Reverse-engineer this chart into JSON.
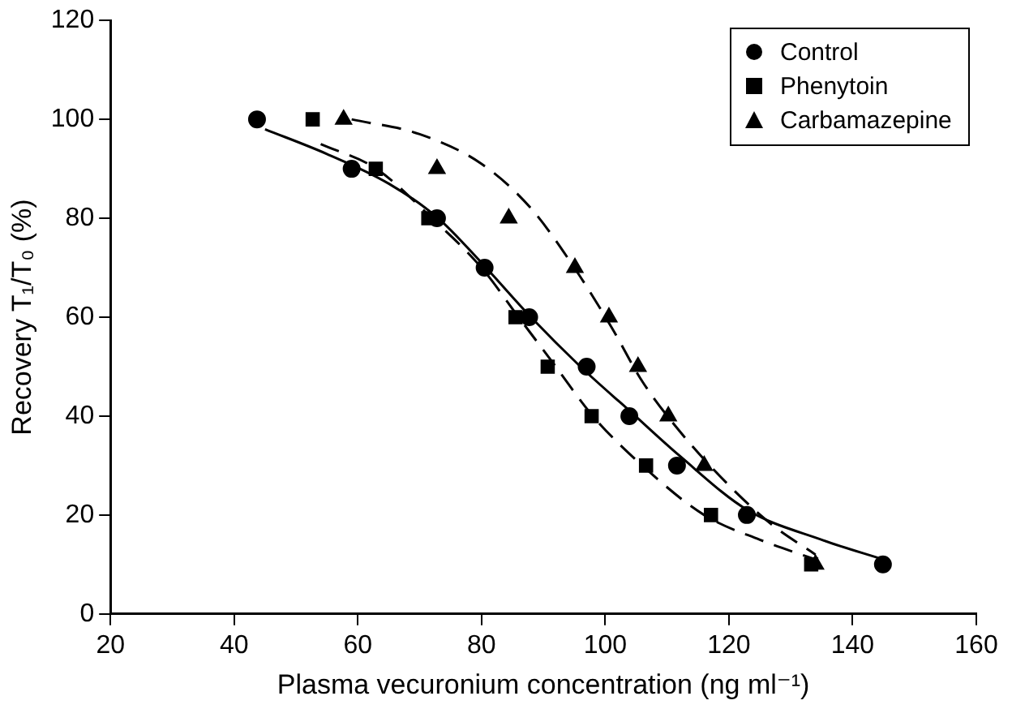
{
  "chart_data": {
    "type": "scatter",
    "xlabel": "Plasma vecuronium concentration (ng ml⁻¹)",
    "ylabel": "Recovery T₁/T₀ (%)",
    "xlim": [
      20,
      160
    ],
    "xticks": [
      20,
      40,
      60,
      80,
      100,
      120,
      140,
      160
    ],
    "ylim": [
      0,
      120
    ],
    "yticks": [
      0,
      20,
      40,
      60,
      80,
      100,
      120
    ],
    "grid": false,
    "legend": "top right",
    "series": [
      {
        "name": "Control",
        "color": "#000000",
        "marker": "circle",
        "x": [
          43.7,
          59,
          72.8,
          80.5,
          87.7,
          97,
          103.9,
          111.6,
          122.9,
          144.9
        ],
        "values": [
          100,
          90,
          80,
          70,
          60,
          50,
          40,
          30,
          20,
          10
        ]
      },
      {
        "name": "Phenytoin",
        "color": "#000000",
        "marker": "square",
        "x": [
          52.7,
          62.9,
          71.4,
          80.5,
          85.5,
          90.7,
          97.8,
          106.6,
          117.1,
          133.3
        ],
        "values": [
          100,
          90,
          80,
          null,
          60,
          50,
          40,
          30,
          20,
          10
        ]
      },
      {
        "name": "Carbamazepine",
        "color": "#000000",
        "marker": "triangle",
        "x": [
          57.7,
          72.8,
          84.4,
          95.1,
          100.6,
          105.3,
          110.2,
          116,
          134
        ],
        "values": [
          100,
          90,
          80,
          70,
          60,
          50,
          40,
          30,
          10
        ]
      },
      {
        "type": "line",
        "color": "#000000",
        "line_style": "solid",
        "x": [
          45,
          55,
          65,
          73,
          80,
          88,
          96,
          104,
          112,
          123,
          135,
          145
        ],
        "values": [
          98,
          93,
          87,
          80,
          71,
          60,
          50,
          41,
          32,
          21,
          15,
          11
        ]
      },
      {
        "type": "line",
        "color": "#000000",
        "line_style": "dashed",
        "x": [
          54,
          63,
          72,
          80,
          86,
          92,
          98,
          106,
          116,
          125,
          134
        ],
        "values": [
          95,
          90,
          80,
          70,
          60,
          50,
          40,
          30,
          20,
          15,
          11
        ]
      },
      {
        "type": "line",
        "color": "#000000",
        "line_style": "dashed",
        "x": [
          59,
          70,
          80,
          88,
          95,
          101,
          106,
          112,
          120,
          127,
          134
        ],
        "values": [
          100,
          97,
          91,
          82,
          70,
          58,
          47,
          37,
          26,
          18,
          12
        ]
      }
    ]
  }
}
